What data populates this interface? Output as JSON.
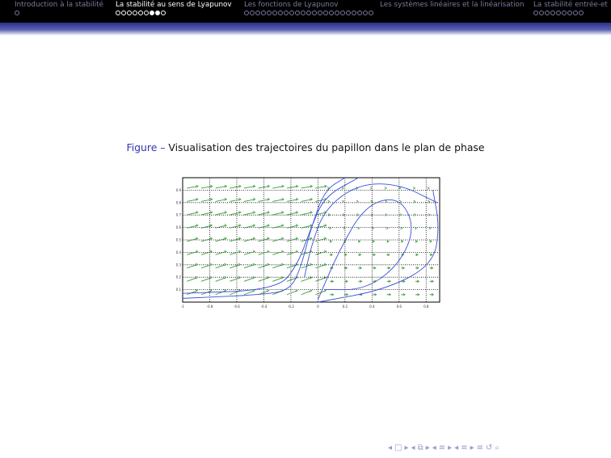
{
  "nav": {
    "sections": [
      {
        "label": "Introduction à la stabilité",
        "dots": 1,
        "filled": [],
        "active": false
      },
      {
        "label": "La stabilité au sens de Lyapunov",
        "dots": 9,
        "filled": [
          6,
          7
        ],
        "active": true
      },
      {
        "label": "Les fonctions de Lyapunov",
        "dots": 23,
        "filled": [],
        "active": false
      },
      {
        "label": "Les systèmes linéaires et la linéarisation",
        "dots": 0,
        "filled": [],
        "active": false
      },
      {
        "label": "La stabilité entrée-et",
        "dots": 9,
        "filled": [],
        "active": false
      }
    ]
  },
  "caption": {
    "prefix": "Figure –",
    "text": "Visualisation des trajectoires du papillon dans le plan de phase"
  },
  "chart_data": {
    "type": "line",
    "title": "",
    "xlabel": "",
    "ylabel": "",
    "xlim": [
      -1,
      0.9
    ],
    "ylim": [
      0,
      1.0
    ],
    "xticks": [
      "-1",
      "-0.8",
      "-0.6",
      "-0.4",
      "-0.2",
      "0",
      "0.2",
      "0.4",
      "0.6",
      "0.8"
    ],
    "yticks": [
      "0.1",
      "0.2",
      "0.3",
      "0.4",
      "0.5",
      "0.6",
      "0.7",
      "0.8",
      "0.9"
    ],
    "grid": true,
    "vector_field": "green arrows on a grid",
    "series": [
      {
        "values": [
          [
            -1.0,
            0.03
          ],
          [
            -0.4,
            0.06
          ],
          [
            -0.2,
            0.1
          ],
          [
            -0.12,
            0.3
          ],
          [
            -0.05,
            0.6
          ],
          [
            0.05,
            0.9
          ],
          [
            0.2,
            1.0
          ]
        ]
      },
      {
        "values": [
          [
            -1.0,
            0.07
          ],
          [
            -0.3,
            0.1
          ],
          [
            -0.15,
            0.3
          ],
          [
            -0.05,
            0.6
          ],
          [
            0.05,
            0.85
          ],
          [
            0.3,
            1.0
          ]
        ]
      },
      {
        "values": [
          [
            -0.1,
            0.2
          ],
          [
            -0.05,
            0.45
          ],
          [
            0.05,
            0.75
          ],
          [
            0.3,
            0.95
          ],
          [
            0.6,
            0.95
          ],
          [
            0.88,
            0.8
          ]
        ]
      },
      {
        "values": [
          [
            0.0,
            0.02
          ],
          [
            0.15,
            0.4
          ],
          [
            0.35,
            0.78
          ],
          [
            0.6,
            0.85
          ],
          [
            0.72,
            0.6
          ],
          [
            0.6,
            0.3
          ],
          [
            0.35,
            0.1
          ],
          [
            0.05,
            0.1
          ]
        ]
      },
      {
        "values": [
          [
            0.0,
            0.0
          ],
          [
            0.5,
            0.1
          ],
          [
            0.85,
            0.3
          ],
          [
            0.9,
            0.6
          ],
          [
            0.85,
            0.9
          ]
        ]
      }
    ],
    "colors": {
      "trajectory": "#3a4fd6",
      "arrows": "#3a9a3a",
      "grid": "#000000"
    }
  },
  "navbar": {
    "symbols": [
      "◂",
      "□",
      "▸",
      "◂",
      "⧉",
      "▸",
      "◂",
      "≡",
      "▸",
      "◂",
      "≡",
      "▸",
      "≡",
      "↺",
      "⌕"
    ]
  }
}
